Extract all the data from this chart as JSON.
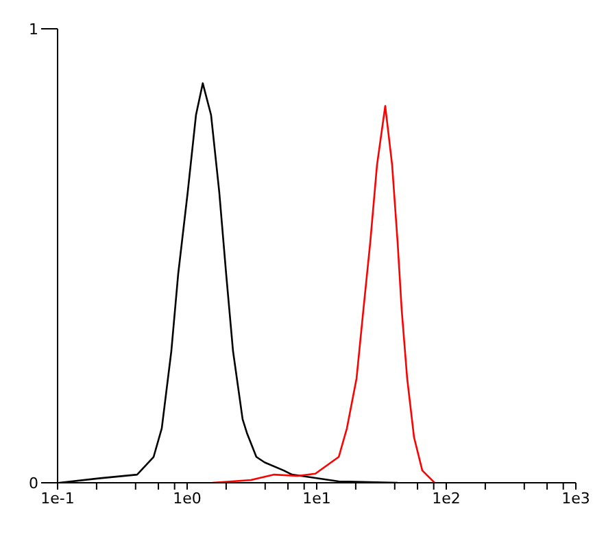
{
  "chart_data": {
    "type": "line",
    "log": "x",
    "xlim": [
      0.1,
      1000
    ],
    "ylim": [
      0,
      1
    ],
    "xticks": [
      {
        "value": 0.1,
        "label": "1e-1"
      },
      {
        "value": 0.2,
        "label": null
      },
      {
        "value": 0.4,
        "label": null
      },
      {
        "value": 0.6,
        "label": null
      },
      {
        "value": 0.8,
        "label": null
      },
      {
        "value": 1,
        "label": "1e0"
      },
      {
        "value": 2,
        "label": null
      },
      {
        "value": 4,
        "label": null
      },
      {
        "value": 6,
        "label": null
      },
      {
        "value": 8,
        "label": null
      },
      {
        "value": 10,
        "label": "1e1"
      },
      {
        "value": 20,
        "label": null
      },
      {
        "value": 40,
        "label": null
      },
      {
        "value": 60,
        "label": null
      },
      {
        "value": 80,
        "label": null
      },
      {
        "value": 100,
        "label": "1e2"
      },
      {
        "value": 200,
        "label": null
      },
      {
        "value": 400,
        "label": null
      },
      {
        "value": 600,
        "label": null
      },
      {
        "value": 800,
        "label": null
      },
      {
        "value": 1000,
        "label": "1e3"
      }
    ],
    "yticks": [
      0,
      1
    ],
    "grid": false,
    "legend": false,
    "marker": "none",
    "line_style": "solid",
    "series": [
      {
        "color": "#000000",
        "x": [
          0.103,
          0.213,
          0.411,
          0.551,
          0.637,
          0.755,
          0.853,
          1.01,
          1.17,
          1.32,
          1.53,
          1.77,
          2.0,
          2.26,
          2.68,
          2.89,
          3.42,
          3.96,
          5.57,
          6.45,
          14.8,
          42.1
        ],
        "values": [
          0.0,
          0.01,
          0.018,
          0.057,
          0.12,
          0.29,
          0.46,
          0.64,
          0.81,
          0.88,
          0.81,
          0.64,
          0.46,
          0.29,
          0.14,
          0.11,
          0.057,
          0.045,
          0.027,
          0.018,
          0.003,
          0.0
        ]
      },
      {
        "color": "#ff0000",
        "x": [
          1.57,
          3.1,
          4.7,
          7.11,
          9.76,
          14.8,
          17.1,
          20.3,
          22.9,
          25.9,
          29.2,
          33.8,
          38.2,
          42.1,
          45.3,
          49.9,
          56.4,
          65.3,
          81.3
        ],
        "values": [
          0.0,
          0.006,
          0.018,
          0.015,
          0.02,
          0.057,
          0.12,
          0.23,
          0.38,
          0.53,
          0.7,
          0.83,
          0.7,
          0.53,
          0.38,
          0.23,
          0.1,
          0.027,
          0.0
        ]
      }
    ]
  }
}
